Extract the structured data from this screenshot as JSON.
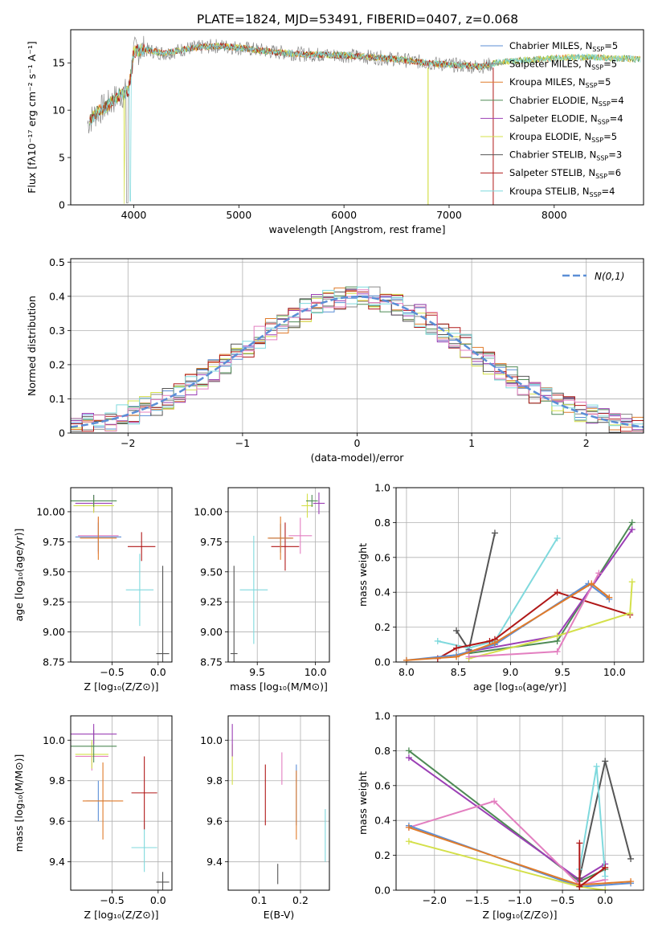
{
  "figure_title": "PLATE=1824, MJD=53491, FIBERID=0407, z=0.068",
  "series_colors": {
    "Chabrier MILES": "#5b8ed6",
    "Salpeter MILES": "#8a8a8a",
    "Kroupa MILES": "#e07b2a",
    "Chabrier ELODIE": "#4e8a55",
    "Salpeter ELODIE": "#9b3fb5",
    "Kroupa ELODIE": "#d4e04a",
    "Chabrier STELIB": "#555555",
    "Salpeter STELIB": "#b01818",
    "Kroupa STELIB": "#7fd9dd",
    "Pink": "#e37fc0",
    "normal_curve": "#5b8ed6"
  },
  "chart_data": [
    {
      "id": "spectrum",
      "type": "line",
      "title": "PLATE=1824, MJD=53491, FIBERID=0407, z=0.068",
      "xlabel": "wavelength [Angstrom, rest frame]",
      "ylabel": "Flux [fλ10⁻¹⁷ erg cm⁻² s⁻¹ A⁻¹]",
      "xlim": [
        3400,
        8850
      ],
      "ylim": [
        0,
        18.5
      ],
      "xticks": [
        4000,
        5000,
        6000,
        7000,
        8000
      ],
      "yticks": [
        0,
        5,
        10,
        15
      ],
      "legend_position": "top-right",
      "legend": [
        "Chabrier MILES, N_SSP=5",
        "Salpeter MILES, N_SSP=5",
        "Kroupa MILES, N_SSP=5",
        "Chabrier ELODIE, N_SSP=4",
        "Salpeter ELODIE, N_SSP=4",
        "Kroupa ELODIE, N_SSP=5",
        "Chabrier STELIB, N_SSP=3",
        "Salpeter STELIB, N_SSP=6",
        "Kroupa STELIB, N_SSP=4"
      ],
      "continuum_x": [
        3550,
        3650,
        3750,
        3850,
        3950,
        4000,
        4100,
        4300,
        4500,
        4800,
        5000,
        5300,
        5600,
        6000,
        6400,
        6800,
        7000,
        7300,
        7500,
        8000,
        8300,
        8800
      ],
      "continuum_y": [
        8.5,
        9.8,
        10.5,
        11.5,
        12.0,
        16.2,
        16.4,
        16.0,
        16.5,
        16.8,
        16.6,
        16.2,
        15.9,
        15.8,
        15.5,
        15.0,
        14.8,
        14.6,
        15.1,
        15.5,
        15.6,
        15.4
      ]
    },
    {
      "id": "residuals",
      "type": "line",
      "xlabel": "(data-model)/error",
      "ylabel": "Normed distribution",
      "xlim": [
        -2.5,
        2.5
      ],
      "ylim": [
        0,
        0.51
      ],
      "xticks": [
        -2,
        -1,
        0,
        1,
        2
      ],
      "yticks": [
        0.0,
        0.1,
        0.2,
        0.3,
        0.4,
        0.5
      ],
      "legend_position": "top-right",
      "legend": [
        "N(0,1)"
      ],
      "normal_mean": 0,
      "normal_sigma": 1
    },
    {
      "id": "age-z",
      "type": "scatter",
      "xlabel": "Z [log₁₀(Z/Z⊙)]",
      "ylabel": "age  [log₁₀(age/yr)]",
      "xlim": [
        -0.95,
        0.15
      ],
      "ylim": [
        8.75,
        10.2
      ],
      "xticks": [
        -0.5,
        0.0
      ],
      "yticks": [
        8.75,
        9.0,
        9.25,
        9.5,
        9.75,
        10.0
      ],
      "points": [
        {
          "c": "Chabrier STELIB",
          "x": 0.05,
          "xe": 0.07,
          "y": 8.82,
          "ye": 0.73
        },
        {
          "c": "Kroupa STELIB",
          "x": -0.2,
          "xe": 0.15,
          "y": 9.35,
          "ye": 0.3
        },
        {
          "c": "Salpeter STELIB",
          "x": -0.18,
          "xe": 0.15,
          "y": 9.71,
          "ye": 0.12
        },
        {
          "c": "Pink",
          "x": -0.65,
          "xe": 0.22,
          "y": 9.8,
          "ye": 0.15
        },
        {
          "c": "Chabrier MILES",
          "x": -0.65,
          "xe": 0.25,
          "y": 9.79,
          "ye": 0.12
        },
        {
          "c": "Kroupa MILES",
          "x": -0.65,
          "xe": 0.2,
          "y": 9.78,
          "ye": 0.18
        },
        {
          "c": "Salpeter ELODIE",
          "x": -0.7,
          "xe": 0.2,
          "y": 10.07,
          "ye": 0.07
        },
        {
          "c": "Kroupa ELODIE",
          "x": -0.7,
          "xe": 0.22,
          "y": 10.05,
          "ye": 0.06
        },
        {
          "c": "Chabrier ELODIE",
          "x": -0.7,
          "xe": 0.25,
          "y": 10.09,
          "ye": 0.05
        }
      ]
    },
    {
      "id": "age-mass",
      "type": "scatter",
      "xlabel": "mass [log₁₀(M/M⊙)]",
      "xlim": [
        9.25,
        10.12
      ],
      "ylim": [
        8.75,
        10.2
      ],
      "xticks": [
        9.5,
        10.0
      ],
      "yticks": [
        8.75,
        9.0,
        9.25,
        9.5,
        9.75,
        10.0
      ],
      "points": [
        {
          "c": "Chabrier STELIB",
          "x": 9.3,
          "xe": 0.03,
          "y": 8.82,
          "ye": 0.73
        },
        {
          "c": "Kroupa STELIB",
          "x": 9.47,
          "xe": 0.12,
          "y": 9.35,
          "ye": 0.45
        },
        {
          "c": "Salpeter STELIB",
          "x": 9.74,
          "xe": 0.12,
          "y": 9.71,
          "ye": 0.2
        },
        {
          "c": "Pink",
          "x": 9.87,
          "xe": 0.1,
          "y": 9.8,
          "ye": 0.15
        },
        {
          "c": "Chabrier MILES",
          "x": 9.7,
          "xe": 0.1,
          "y": 9.78,
          "ye": 0.12
        },
        {
          "c": "Kroupa MILES",
          "x": 9.7,
          "xe": 0.11,
          "y": 9.78,
          "ye": 0.18
        },
        {
          "c": "Salpeter ELODIE",
          "x": 10.03,
          "xe": 0.05,
          "y": 10.07,
          "ye": 0.09
        },
        {
          "c": "Kroupa ELODIE",
          "x": 9.93,
          "xe": 0.05,
          "y": 10.05,
          "ye": 0.1
        },
        {
          "c": "Chabrier ELODIE",
          "x": 9.97,
          "xe": 0.05,
          "y": 10.09,
          "ye": 0.05
        }
      ]
    },
    {
      "id": "weight-age",
      "type": "line",
      "xlabel": "age  [log₁₀(age/yr)]",
      "ylabel": "mass weight",
      "xlim": [
        7.9,
        10.28
      ],
      "ylim": [
        0,
        1.0
      ],
      "xticks": [
        8.0,
        8.5,
        9.0,
        9.5,
        10.0
      ],
      "yticks": [
        0.0,
        0.2,
        0.4,
        0.6,
        0.8,
        1.0
      ],
      "series": [
        {
          "c": "Chabrier STELIB",
          "x": [
            8.48,
            8.6,
            8.85
          ],
          "y": [
            0.18,
            0.07,
            0.74
          ]
        },
        {
          "c": "Kroupa STELIB",
          "x": [
            8.3,
            8.6,
            8.85,
            9.45
          ],
          "y": [
            0.12,
            0.08,
            0.12,
            0.71
          ]
        },
        {
          "c": "Salpeter STELIB",
          "x": [
            8.3,
            8.48,
            8.8,
            8.85,
            9.45,
            10.15
          ],
          "y": [
            0.02,
            0.08,
            0.12,
            0.13,
            0.4,
            0.27
          ]
        },
        {
          "c": "Chabrier ELODIE",
          "x": [
            8.6,
            9.45,
            10.17
          ],
          "y": [
            0.05,
            0.12,
            0.8
          ]
        },
        {
          "c": "Salpeter ELODIE",
          "x": [
            8.6,
            9.45,
            10.17
          ],
          "y": [
            0.06,
            0.15,
            0.76
          ]
        },
        {
          "c": "Kroupa ELODIE",
          "x": [
            8.6,
            9.45,
            10.15,
            10.17
          ],
          "y": [
            0.02,
            0.15,
            0.28,
            0.46
          ]
        },
        {
          "c": "Pink",
          "x": [
            8.6,
            9.45,
            9.85
          ],
          "y": [
            0.03,
            0.06,
            0.51
          ]
        },
        {
          "c": "Chabrier MILES",
          "x": [
            8.0,
            8.48,
            8.85,
            9.75,
            9.95
          ],
          "y": [
            0.01,
            0.04,
            0.1,
            0.45,
            0.36
          ]
        },
        {
          "c": "Kroupa MILES",
          "x": [
            8.0,
            8.48,
            8.85,
            9.78,
            9.95
          ],
          "y": [
            0.01,
            0.03,
            0.11,
            0.45,
            0.37
          ]
        }
      ]
    },
    {
      "id": "mass-z",
      "type": "scatter",
      "xlabel": "Z [log₁₀(Z/Z⊙)]",
      "ylabel": "mass [log₁₀(M/M⊙)]",
      "xlim": [
        -0.95,
        0.15
      ],
      "ylim": [
        9.26,
        10.12
      ],
      "xticks": [
        -0.5,
        0.0
      ],
      "yticks": [
        9.4,
        9.6,
        9.8,
        10.0
      ],
      "points": [
        {
          "c": "Chabrier STELIB",
          "x": 0.05,
          "xe": 0.07,
          "y": 9.3,
          "ye": 0.05
        },
        {
          "c": "Kroupa STELIB",
          "x": -0.15,
          "xe": 0.14,
          "y": 9.47,
          "ye": 0.12
        },
        {
          "c": "Salpeter STELIB",
          "x": -0.15,
          "xe": 0.14,
          "y": 9.74,
          "ye": 0.18
        },
        {
          "c": "Chabrier MILES",
          "x": -0.65,
          "xe": 0.13,
          "y": 9.7,
          "ye": 0.1
        },
        {
          "c": "Kroupa MILES",
          "x": -0.6,
          "xe": 0.22,
          "y": 9.7,
          "ye": 0.19
        },
        {
          "c": "Pink",
          "x": -0.72,
          "xe": 0.18,
          "y": 9.92,
          "ye": 0.07
        },
        {
          "c": "Kroupa ELODIE",
          "x": -0.72,
          "xe": 0.18,
          "y": 9.93,
          "ye": 0.07
        },
        {
          "c": "Chabrier ELODIE",
          "x": -0.7,
          "xe": 0.25,
          "y": 9.97,
          "ye": 0.08
        },
        {
          "c": "Salpeter ELODIE",
          "x": -0.7,
          "xe": 0.25,
          "y": 10.03,
          "ye": 0.05
        }
      ]
    },
    {
      "id": "mass-ebv",
      "type": "scatter",
      "xlabel": "E(B-V)",
      "xlim": [
        0.025,
        0.27
      ],
      "ylim": [
        9.26,
        10.12
      ],
      "xticks": [
        0.1,
        0.2
      ],
      "yticks": [
        9.4,
        9.6,
        9.8,
        10.0
      ],
      "points": [
        {
          "c": "Chabrier STELIB",
          "x": 0.145,
          "y": 9.34,
          "ye": 0.05
        },
        {
          "c": "Kroupa STELIB",
          "x": 0.26,
          "y": 9.53,
          "ye": 0.13
        },
        {
          "c": "Salpeter STELIB",
          "x": 0.115,
          "y": 9.73,
          "ye": 0.15
        },
        {
          "c": "Chabrier MILES",
          "x": 0.19,
          "y": 9.73,
          "ye": 0.15
        },
        {
          "c": "Kroupa MILES",
          "x": 0.19,
          "y": 9.68,
          "ye": 0.17
        },
        {
          "c": "Pink",
          "x": 0.155,
          "y": 9.86,
          "ye": 0.08
        },
        {
          "c": "Kroupa ELODIE",
          "x": 0.035,
          "y": 9.88,
          "ye": 0.1
        },
        {
          "c": "Salpeter ELODIE",
          "x": 0.035,
          "y": 10.0,
          "ye": 0.08
        }
      ]
    },
    {
      "id": "weight-z",
      "type": "line",
      "xlabel": "Z [log₁₀(Z/Z⊙)]",
      "ylabel": "mass weight",
      "xlim": [
        -2.45,
        0.45
      ],
      "ylim": [
        0,
        1.0
      ],
      "xticks": [
        -2.0,
        -1.5,
        -1.0,
        -0.5,
        0.0
      ],
      "yticks": [
        0.0,
        0.2,
        0.4,
        0.6,
        0.8,
        1.0
      ],
      "series": [
        {
          "c": "Chabrier ELODIE",
          "x": [
            -2.3,
            -0.3,
            0.0
          ],
          "y": [
            0.8,
            0.05,
            0.12
          ]
        },
        {
          "c": "Salpeter ELODIE",
          "x": [
            -2.3,
            -0.3,
            0.0
          ],
          "y": [
            0.76,
            0.06,
            0.15
          ]
        },
        {
          "c": "Pink",
          "x": [
            -2.3,
            -1.3,
            -0.3,
            0.0
          ],
          "y": [
            0.36,
            0.51,
            0.03,
            0.06
          ]
        },
        {
          "c": "Chabrier MILES",
          "x": [
            -2.3,
            -0.3,
            0.3
          ],
          "y": [
            0.37,
            0.02,
            0.04
          ]
        },
        {
          "c": "Kroupa MILES",
          "x": [
            -2.3,
            -0.3,
            0.3
          ],
          "y": [
            0.36,
            0.03,
            0.05
          ]
        },
        {
          "c": "Kroupa ELODIE",
          "x": [
            -2.3,
            -0.3,
            0.0
          ],
          "y": [
            0.28,
            0.02,
            0.0
          ]
        },
        {
          "c": "Chabrier STELIB",
          "x": [
            -0.3,
            0.0,
            0.3
          ],
          "y": [
            0.07,
            0.74,
            0.18
          ]
        },
        {
          "c": "Kroupa STELIB",
          "x": [
            -0.3,
            -0.1,
            0.0
          ],
          "y": [
            0.12,
            0.71,
            0.08
          ]
        },
        {
          "c": "Salpeter STELIB",
          "x": [
            -0.3,
            -0.3,
            0.0
          ],
          "y": [
            0.27,
            0.02,
            0.13
          ]
        }
      ]
    }
  ]
}
